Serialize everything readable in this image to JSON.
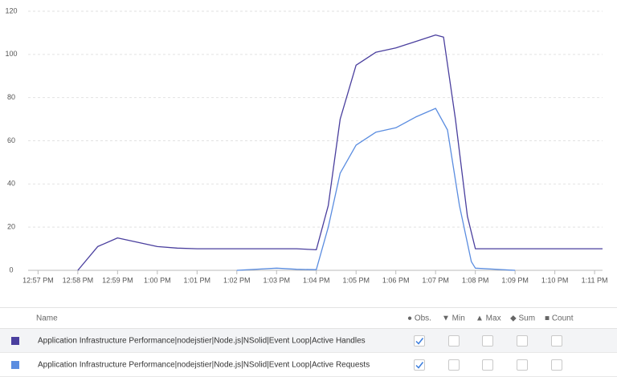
{
  "chart_data": {
    "type": "line",
    "xlim": [
      -0.25,
      14.2
    ],
    "ylim": [
      0,
      120
    ],
    "yticks": [
      0,
      20,
      40,
      60,
      80,
      100,
      120
    ],
    "xticks": [
      {
        "value": 0,
        "label": "12:57 PM"
      },
      {
        "value": 1,
        "label": "12:58 PM"
      },
      {
        "value": 2,
        "label": "12:59 PM"
      },
      {
        "value": 3,
        "label": "1:00 PM"
      },
      {
        "value": 4,
        "label": "1:01 PM"
      },
      {
        "value": 5,
        "label": "1:02 PM"
      },
      {
        "value": 6,
        "label": "1:03 PM"
      },
      {
        "value": 7,
        "label": "1:04 PM"
      },
      {
        "value": 8,
        "label": "1:05 PM"
      },
      {
        "value": 9,
        "label": "1:06 PM"
      },
      {
        "value": 10,
        "label": "1:07 PM"
      },
      {
        "value": 11,
        "label": "1:08 PM"
      },
      {
        "value": 12,
        "label": "1:09 PM"
      },
      {
        "value": 13,
        "label": "1:10 PM"
      },
      {
        "value": 14,
        "label": "1:11 PM"
      }
    ],
    "grid": true,
    "series": [
      {
        "name": "Application Infrastructure Performance|nodejstier|Node.js|NSolid|Event Loop|Active Handles",
        "color": "#4a3f9e",
        "x": [
          1,
          1.5,
          2,
          2.5,
          3,
          3.5,
          4,
          5,
          6,
          6.5,
          7,
          7.3,
          7.6,
          8,
          8.5,
          9,
          9.5,
          10,
          10.2,
          10.5,
          10.8,
          11,
          12,
          13,
          14.2
        ],
        "values": [
          0,
          11,
          15,
          13,
          11,
          10.3,
          10,
          10,
          10,
          10,
          9.5,
          30,
          70,
          95,
          101,
          103,
          106,
          109,
          108,
          70,
          25,
          10,
          10,
          10,
          10
        ]
      },
      {
        "name": "Application Infrastructure Performance|nodejstier|Node.js|NSolid|Event Loop|Active Requests",
        "color": "#5b8de0",
        "x": [
          5,
          6,
          6.5,
          7,
          7.3,
          7.6,
          8,
          8.5,
          9,
          9.5,
          10,
          10.3,
          10.6,
          10.9,
          11,
          12
        ],
        "values": [
          0,
          1,
          0.5,
          0.3,
          20,
          45,
          58,
          64,
          66,
          71,
          75,
          65,
          30,
          4,
          1,
          0
        ]
      }
    ]
  },
  "table": {
    "header": [
      "Name",
      "● Obs.",
      "▼ Min",
      "▲ Max",
      "◆ Sum",
      "■ Count"
    ],
    "checks": [
      [
        true,
        false,
        false,
        false,
        false
      ],
      [
        true,
        false,
        false,
        false,
        false
      ]
    ]
  }
}
